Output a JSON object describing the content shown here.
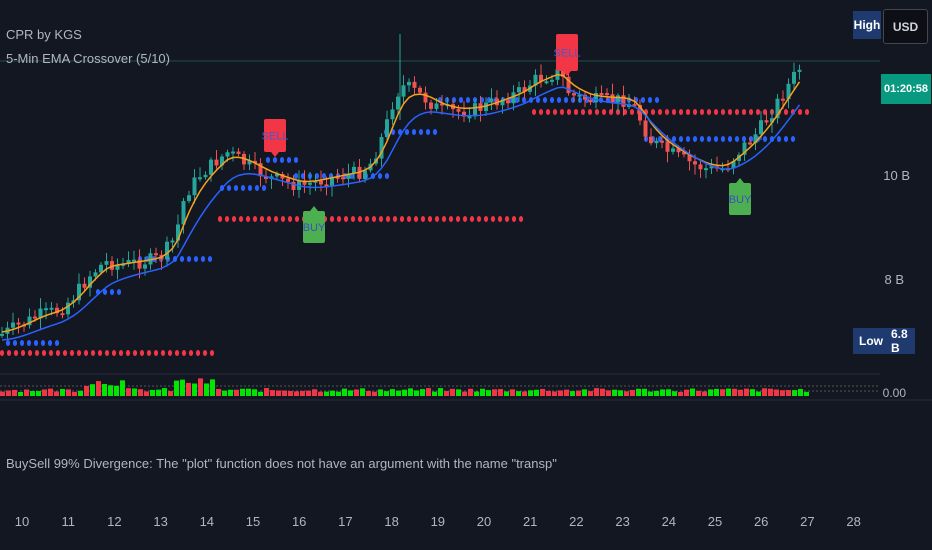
{
  "indicators": {
    "cpr_title": "CPR by KGS",
    "ema_title": "5-Min EMA Crossover (5/10)"
  },
  "price_axis": {
    "high_label": "High",
    "currency": "USD",
    "countdown": "01:20:58",
    "low_label": "Low",
    "low_value": "6.8 B",
    "tick_10b": "10 B",
    "tick_8b": "8 B",
    "tick_000": "0.00"
  },
  "signals": {
    "sell_label": "SELL",
    "buy_label": "BUY"
  },
  "error_message": "BuySell 99% Divergence: The \"plot\" function does not have an argument with the name \"transp\"",
  "time_axis": [
    "10",
    "11",
    "12",
    "13",
    "14",
    "15",
    "16",
    "17",
    "18",
    "19",
    "20",
    "21",
    "22",
    "23",
    "24",
    "25",
    "26",
    "27",
    "28"
  ],
  "colors": {
    "background": "#131722",
    "up_candle": "#26a69a",
    "down_candle": "#ef5350",
    "ema_fast": "#f7a21b",
    "ema_slow": "#2962ff",
    "cpr_blue": "#2962ff",
    "cpr_red": "#f23645",
    "sell_badge": "#f23645",
    "buy_badge": "#4caf50",
    "volume_green": "#00e600",
    "volume_red": "#f23645"
  }
}
